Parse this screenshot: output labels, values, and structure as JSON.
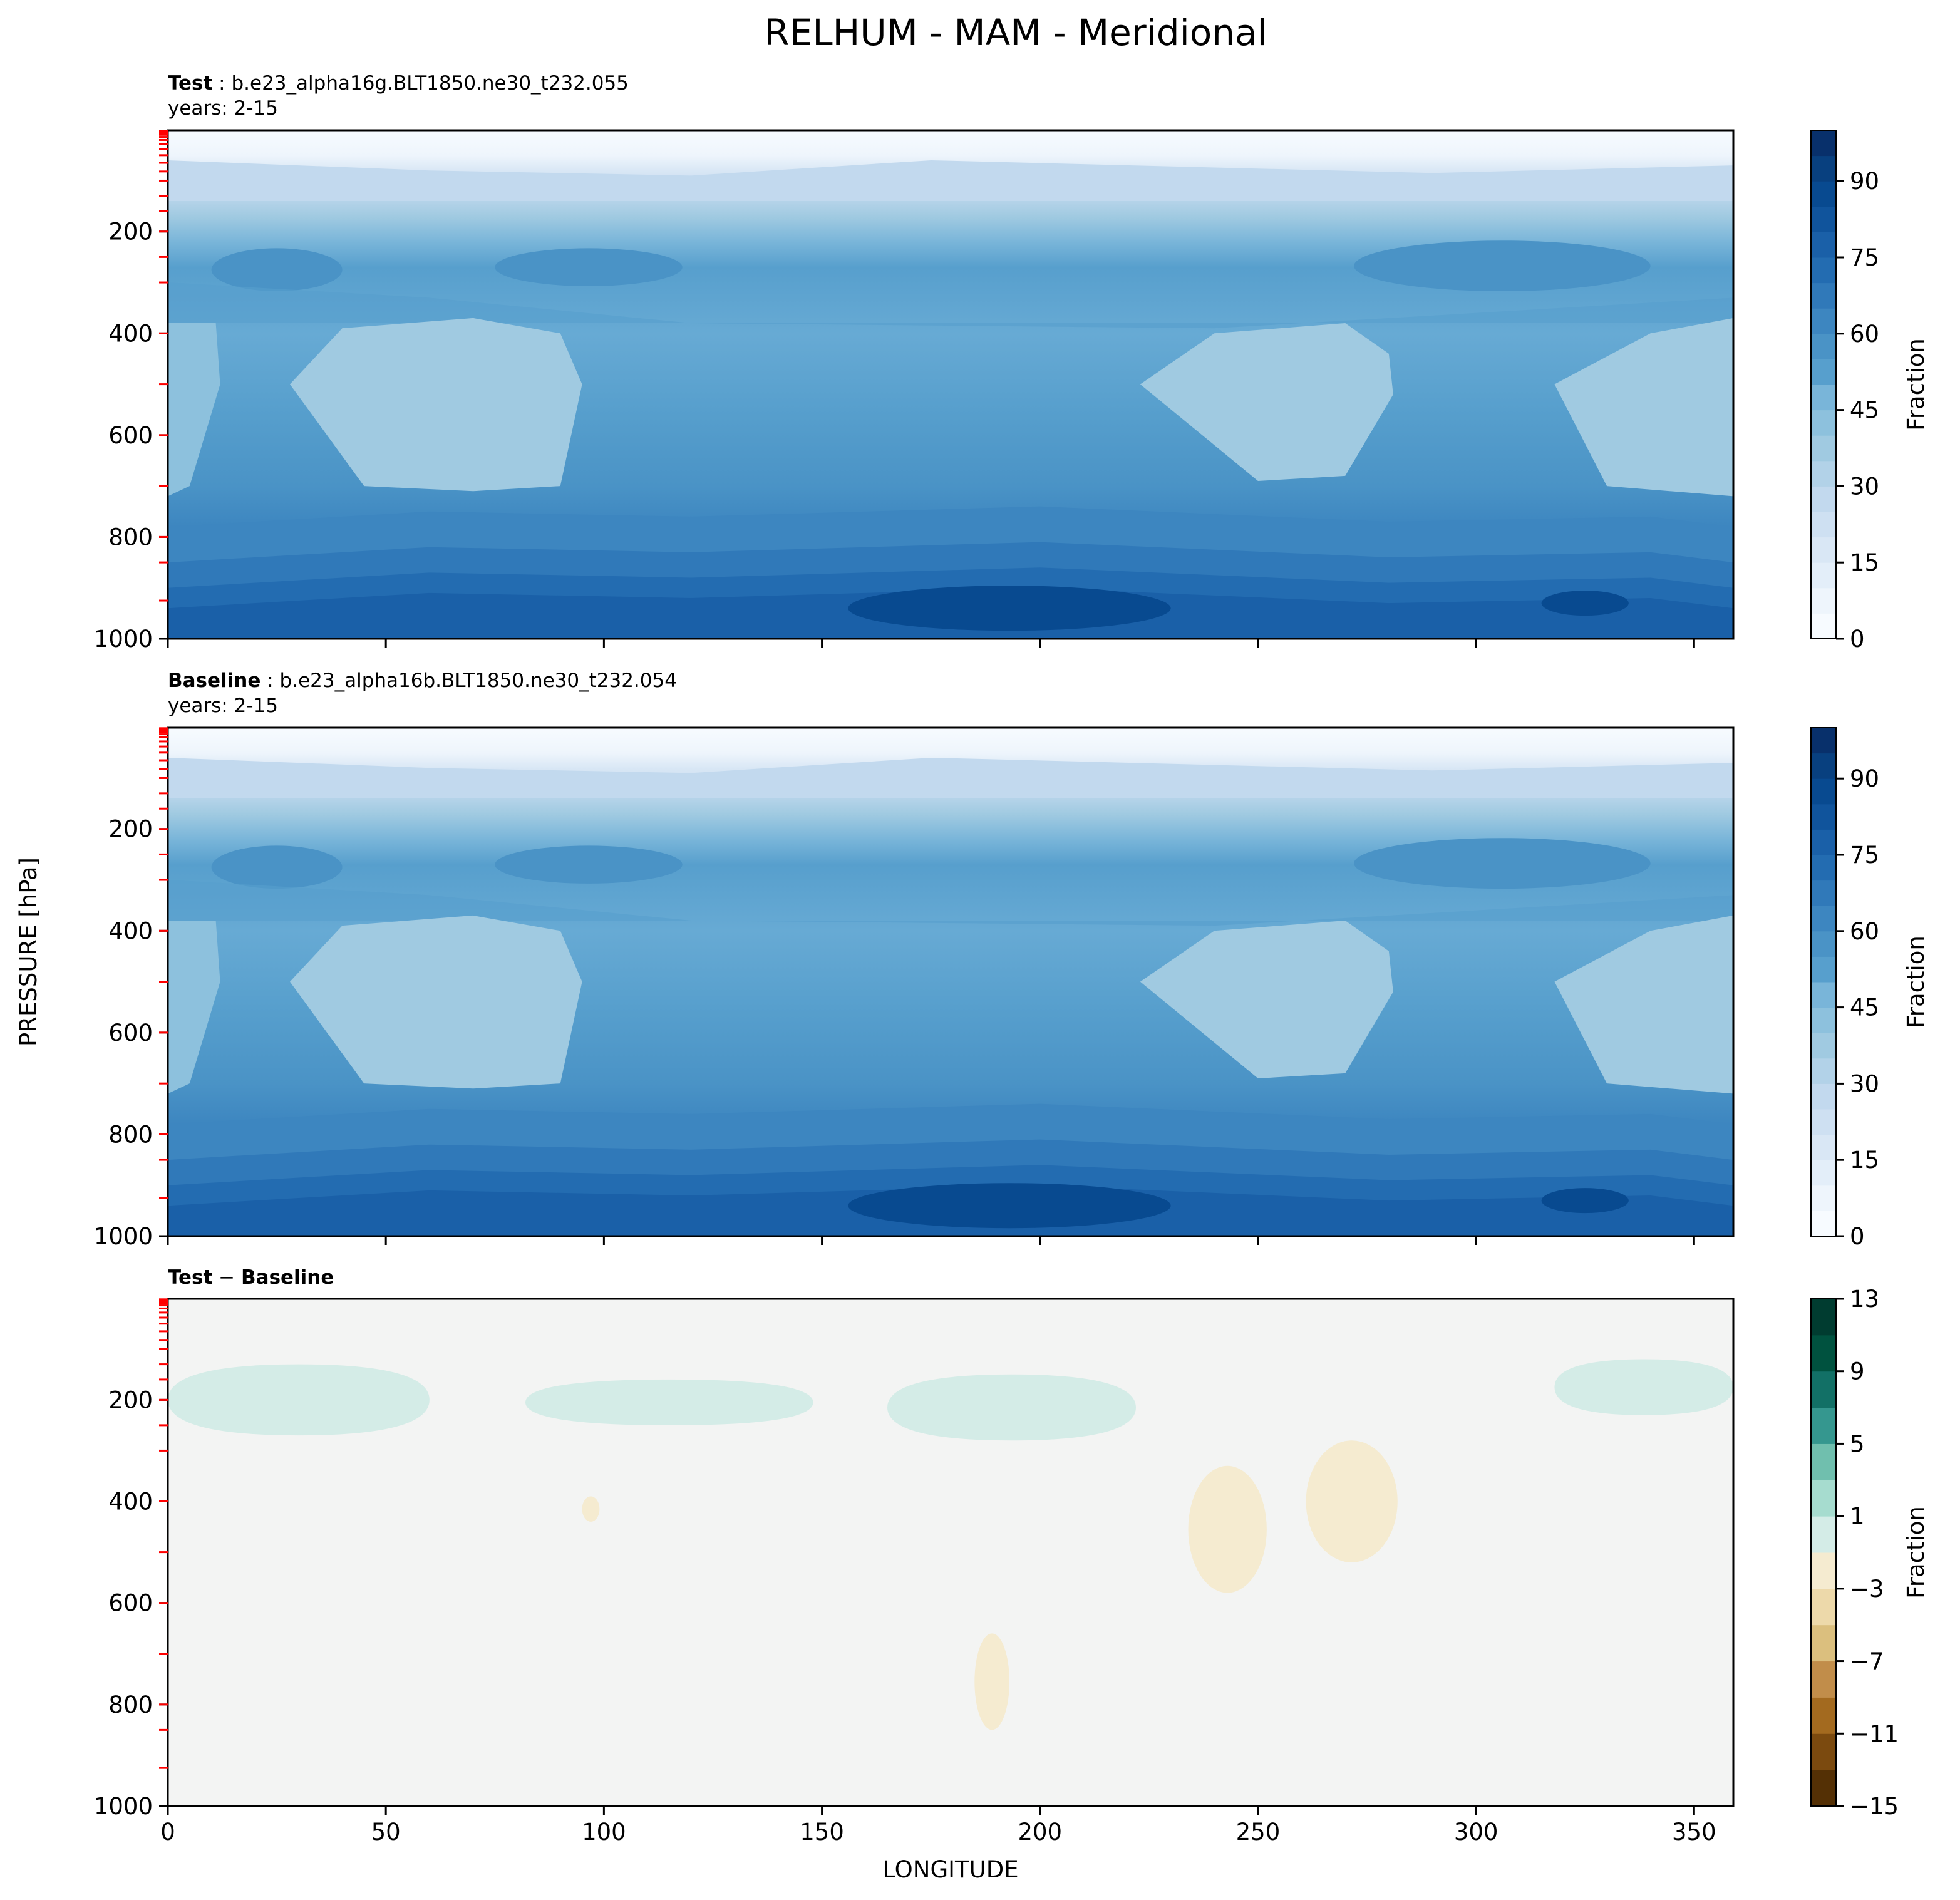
{
  "figure": {
    "title": "RELHUM - MAM - Meridional",
    "xlabel": "LONGITUDE",
    "ylabel": "PRESSURE [hPa]"
  },
  "colors": {
    "blues": [
      "#f7fbff",
      "#eef5fc",
      "#e3eef9",
      "#d9e7f5",
      "#cee0f2",
      "#c2d9ee",
      "#b2d2e8",
      "#a0cae1",
      "#8dc1dd",
      "#79b5d9",
      "#67aad4",
      "#579fcd",
      "#4a93c6",
      "#3d86c0",
      "#3079b9",
      "#236cb1",
      "#1a60a8",
      "#10549c",
      "#084a90",
      "#08407f",
      "#08306b"
    ],
    "diff": [
      "#543005",
      "#7b4a0f",
      "#a36a1f",
      "#c18d4a",
      "#dbbf7e",
      "#edd9aa",
      "#f5ebd0",
      "#f5f5f5",
      "#d4ece7",
      "#a6dccf",
      "#70bfae",
      "#35978f",
      "#127066",
      "#00523f",
      "#003c30"
    ],
    "red_tick": "#ff0000",
    "background_diff": "#f3f4f3"
  },
  "chart_data": [
    {
      "type": "heatmap",
      "id": "test",
      "label": "Test",
      "case": "b.e23_alpha16g.BLT1850.ne30_t232.055",
      "years": "years: 2-15",
      "xlim": [
        0,
        359
      ],
      "ylim": [
        1000,
        1
      ],
      "y_inverted": true,
      "yticks": [
        200,
        400,
        600,
        800,
        1000
      ],
      "xticks": [
        0,
        50,
        100,
        150,
        200,
        250,
        300,
        350
      ],
      "colorbar": {
        "label": "Fraction",
        "ticks": [
          0,
          15,
          30,
          45,
          60,
          75,
          90
        ],
        "range": [
          0,
          100
        ],
        "levels": 20
      },
      "field_description": "relative humidity increasing from ~0 at top to ~90 near 1000 hPa; moister lower troposphere over 150-235 longitude; drier mid troposphere pockets near 30-95 and 225-280"
    },
    {
      "type": "heatmap",
      "id": "baseline",
      "label": "Baseline",
      "case": "b.e23_alpha16b.BLT1850.ne30_t232.054",
      "years": "years: 2-15",
      "xlim": [
        0,
        359
      ],
      "ylim": [
        1000,
        1
      ],
      "y_inverted": true,
      "yticks": [
        200,
        400,
        600,
        800,
        1000
      ],
      "xticks": [
        0,
        50,
        100,
        150,
        200,
        250,
        300,
        350
      ],
      "colorbar": {
        "label": "Fraction",
        "ticks": [
          0,
          15,
          30,
          45,
          60,
          75,
          90
        ],
        "range": [
          0,
          100
        ],
        "levels": 20
      }
    },
    {
      "type": "heatmap",
      "id": "diff",
      "label": "Test − Baseline",
      "label_a": "Test",
      "label_b": "Baseline",
      "xlim": [
        0,
        359
      ],
      "ylim": [
        1000,
        1
      ],
      "y_inverted": true,
      "yticks": [
        200,
        400,
        600,
        800,
        1000
      ],
      "xticks": [
        0,
        50,
        100,
        150,
        200,
        250,
        300,
        350
      ],
      "colorbar": {
        "label": "Fraction",
        "ticks": [
          -15,
          -11,
          -7,
          -3,
          1,
          5,
          9,
          13
        ],
        "range": [
          -15,
          13
        ],
        "levels": 14
      },
      "positive_regions": [
        {
          "lon": [
            0,
            60
          ],
          "p": [
            130,
            270
          ],
          "value": 2
        },
        {
          "lon": [
            82,
            148
          ],
          "p": [
            160,
            250
          ],
          "value": 2
        },
        {
          "lon": [
            165,
            222
          ],
          "p": [
            150,
            280
          ],
          "value": 2
        },
        {
          "lon": [
            318,
            359
          ],
          "p": [
            120,
            230
          ],
          "value": 2
        }
      ],
      "negative_regions": [
        {
          "lon": [
            234,
            252
          ],
          "p": [
            330,
            580
          ],
          "value": -2
        },
        {
          "lon": [
            261,
            282
          ],
          "p": [
            280,
            520
          ],
          "value": -2
        },
        {
          "lon": [
            185,
            193
          ],
          "p": [
            660,
            850
          ],
          "value": -2
        },
        {
          "lon": [
            95,
            99
          ],
          "p": [
            390,
            440
          ],
          "value": -2
        }
      ]
    }
  ]
}
